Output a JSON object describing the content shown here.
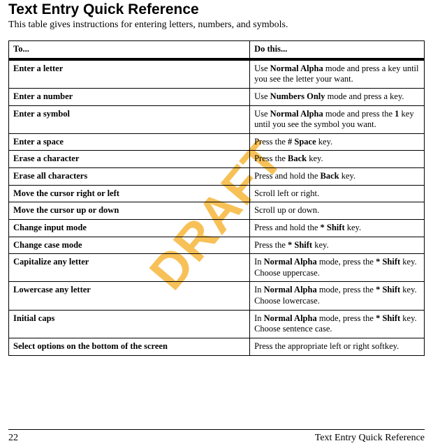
{
  "title": "Text Entry Quick Reference",
  "intro": "This table gives instructions for entering letters, numbers, and symbols.",
  "watermark": "DRAFT",
  "table": {
    "header": {
      "to": "To...",
      "do": "Do this..."
    },
    "rows": [
      {
        "to": "Enter a letter",
        "do": [
          {
            "t": "Use "
          },
          {
            "t": "Normal Alpha",
            "b": true
          },
          {
            "t": " mode and press a key until you see the letter your want."
          }
        ]
      },
      {
        "to": "Enter a number",
        "do": [
          {
            "t": "Use "
          },
          {
            "t": "Numbers Only",
            "b": true
          },
          {
            "t": " mode and press a key."
          }
        ]
      },
      {
        "to": "Enter a symbol",
        "do": [
          {
            "t": "Use "
          },
          {
            "t": "Normal Alpha",
            "b": true
          },
          {
            "t": " mode and press the "
          },
          {
            "t": "1",
            "b": true
          },
          {
            "t": " key until you see the symbol you want."
          }
        ]
      },
      {
        "to": "Enter a space",
        "do": [
          {
            "t": "Press the "
          },
          {
            "t": "# Space",
            "b": true
          },
          {
            "t": " key."
          }
        ]
      },
      {
        "to": "Erase a character",
        "do": [
          {
            "t": "Press the "
          },
          {
            "t": "Back",
            "b": true
          },
          {
            "t": " key."
          }
        ]
      },
      {
        "to": "Erase all characters",
        "do": [
          {
            "t": "Press and hold the "
          },
          {
            "t": "Back",
            "b": true
          },
          {
            "t": " key."
          }
        ]
      },
      {
        "to": "Move the cursor right or left",
        "do": [
          {
            "t": "Scroll left or right."
          }
        ]
      },
      {
        "to": "Move the cursor up or down",
        "do": [
          {
            "t": "Scroll up or down."
          }
        ]
      },
      {
        "to": "Change input mode",
        "do": [
          {
            "t": "Press and hold the "
          },
          {
            "t": "* Shift",
            "b": true
          },
          {
            "t": " key."
          }
        ]
      },
      {
        "to": "Change case mode",
        "do": [
          {
            "t": "Press the "
          },
          {
            "t": "* Shift",
            "b": true
          },
          {
            "t": " key."
          }
        ]
      },
      {
        "to": "Capitalize any letter",
        "do": [
          {
            "t": "In "
          },
          {
            "t": "Normal Alpha",
            "b": true
          },
          {
            "t": " mode, press the "
          },
          {
            "t": "* Shift",
            "b": true
          },
          {
            "t": " key. Choose uppercase."
          }
        ]
      },
      {
        "to": "Lowercase any letter",
        "do": [
          {
            "t": "In "
          },
          {
            "t": "Normal Alpha",
            "b": true
          },
          {
            "t": " mode, press the "
          },
          {
            "t": "* Shift",
            "b": true
          },
          {
            "t": " key. Choose lowercase."
          }
        ]
      },
      {
        "to": "Initial caps",
        "do": [
          {
            "t": "In "
          },
          {
            "t": "Normal Alpha",
            "b": true
          },
          {
            "t": " mode, press the "
          },
          {
            "t": "* Shift",
            "b": true
          },
          {
            "t": " key. Choose sentence case."
          }
        ]
      },
      {
        "to": "Select options on the bottom of the screen",
        "do": [
          {
            "t": "Press the appropriate left or right softkey."
          }
        ]
      }
    ]
  },
  "footer": {
    "page": "22",
    "section": "Text Entry Quick Reference"
  }
}
